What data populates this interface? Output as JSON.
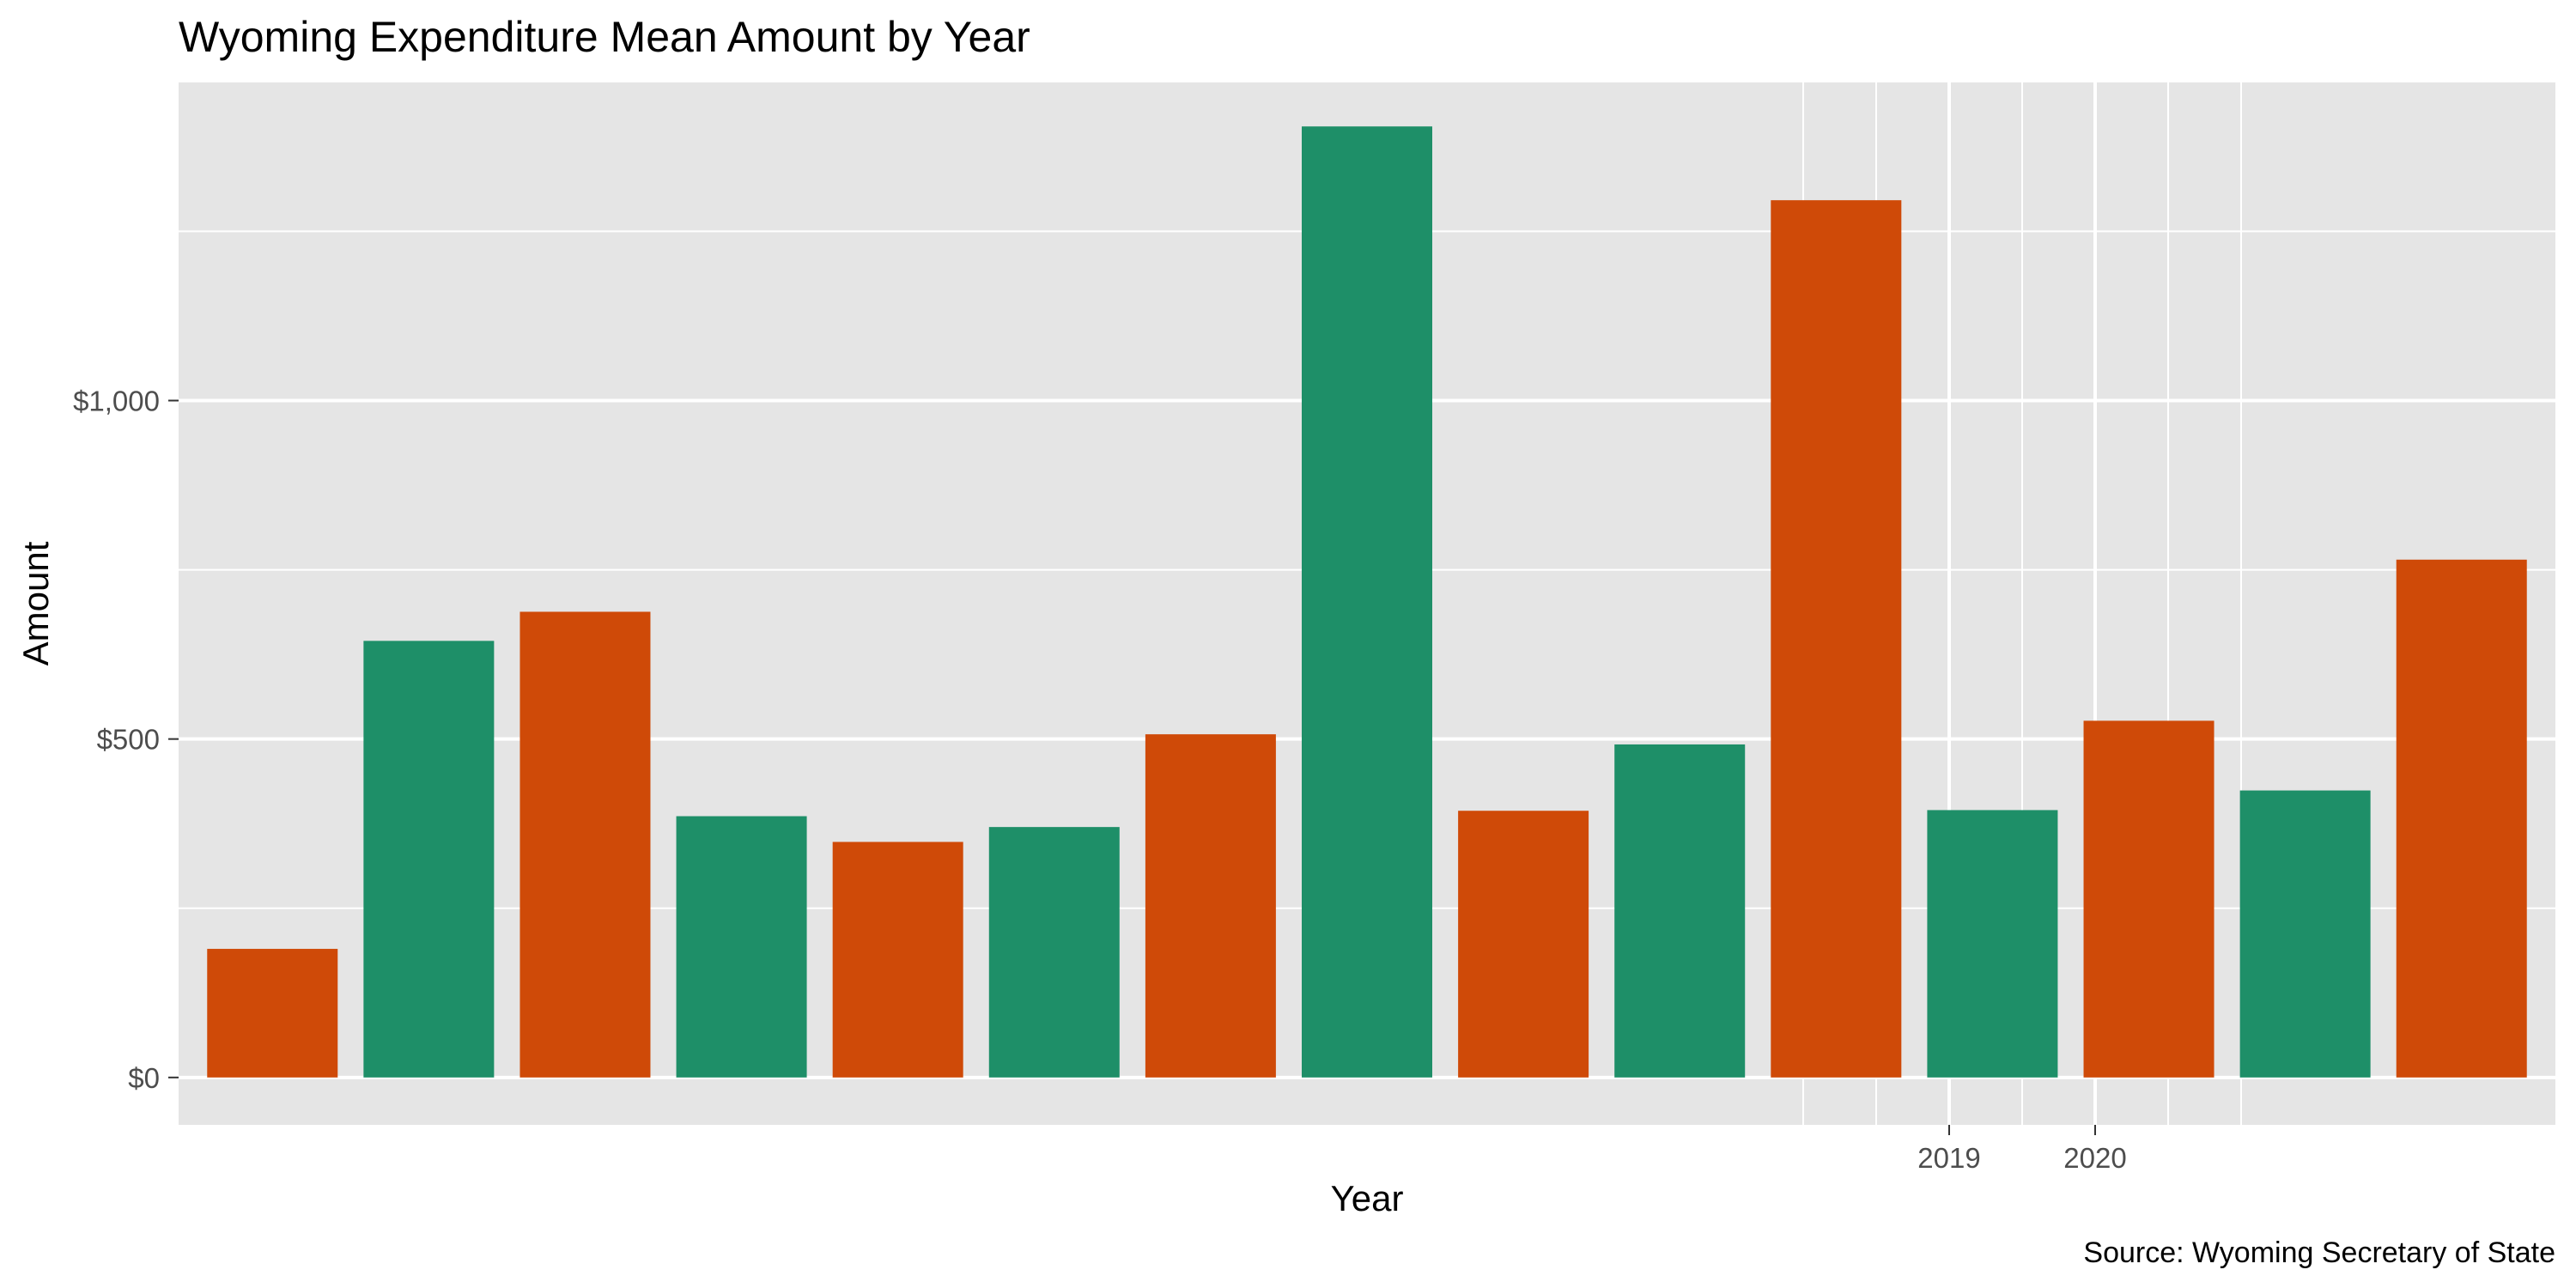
{
  "chart_data": {
    "type": "bar",
    "title": "Wyoming Expenditure Mean Amount by Year",
    "xlabel": "Year",
    "ylabel": "Amount",
    "caption": "Source: Wyoming Secretary of State",
    "x_tick_labels": [
      {
        "label": "2019",
        "x": 2019
      },
      {
        "label": "2020",
        "x": 2020
      }
    ],
    "y_tick_labels": [
      {
        "label": "$0",
        "value": 0
      },
      {
        "label": "$500",
        "value": 500
      },
      {
        "label": "$1,000",
        "value": 1000
      }
    ],
    "ylim": [
      -70,
      1470
    ],
    "grid": true,
    "legend": "none",
    "colors": {
      "panel": "#e5e5e5",
      "grid": "#ffffff",
      "odd": "#cf4a08",
      "even": "#1e8f68",
      "tick": "#333333"
    },
    "bars": [
      {
        "value": 190,
        "color": "odd"
      },
      {
        "value": 645,
        "color": "even"
      },
      {
        "value": 688,
        "color": "odd"
      },
      {
        "value": 386,
        "color": "even"
      },
      {
        "value": 348,
        "color": "odd"
      },
      {
        "value": 370,
        "color": "even"
      },
      {
        "value": 507,
        "color": "odd"
      },
      {
        "value": 1405,
        "color": "even"
      },
      {
        "value": 394,
        "color": "odd"
      },
      {
        "value": 492,
        "color": "even"
      },
      {
        "value": 1296,
        "color": "odd"
      },
      {
        "value": 395,
        "color": "even"
      },
      {
        "value": 527,
        "color": "odd"
      },
      {
        "value": 424,
        "color": "even"
      },
      {
        "value": 765,
        "color": "odd"
      }
    ]
  }
}
